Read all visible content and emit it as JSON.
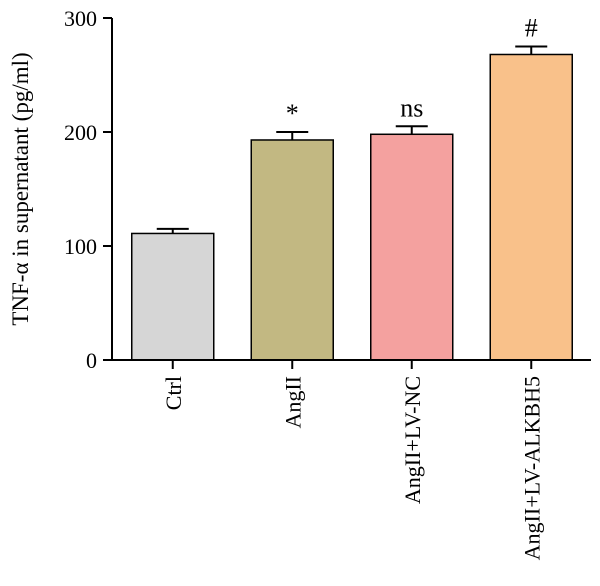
{
  "chart_data": {
    "type": "bar",
    "title": "",
    "xlabel": "",
    "ylabel": "TNF-α in supernatant (pg/ml)",
    "ylim": [
      0,
      300
    ],
    "yticks": [
      0,
      100,
      200,
      300
    ],
    "categories": [
      "Ctrl",
      "AngII",
      "AngII+LV-NC",
      "AngII+LV-ALKBH5"
    ],
    "values": [
      111,
      193,
      198,
      268
    ],
    "errors": [
      4,
      7,
      7,
      7
    ],
    "annotations": [
      "",
      "*",
      "ns",
      "#"
    ],
    "colors": [
      "#d6d6d6",
      "#c2b882",
      "#f4a19f",
      "#f9c18a"
    ],
    "grid": false,
    "legend": "none"
  }
}
